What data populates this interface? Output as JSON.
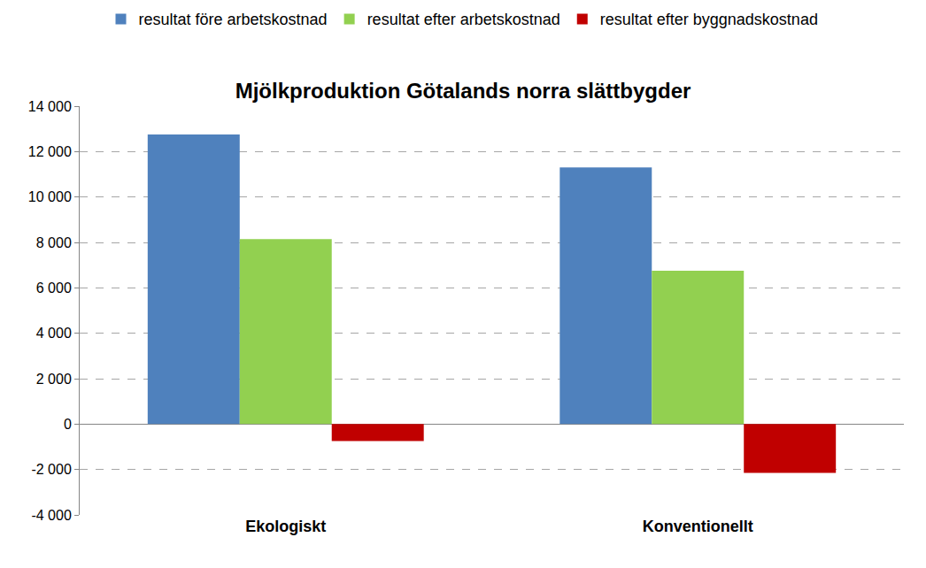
{
  "chart_data": {
    "type": "bar",
    "title": "Mjölkproduktion Götalands norra slättbygder",
    "categories": [
      "Ekologiskt",
      "Konventionellt"
    ],
    "series": [
      {
        "name": "resultat före arbetskostnad",
        "color": "#4f81bd",
        "values": [
          12750,
          11300
        ]
      },
      {
        "name": "resultat efter arbetskostnad",
        "color": "#92d050",
        "values": [
          8150,
          6750
        ]
      },
      {
        "name": "resultat efter byggnadskostnad",
        "color": "#c00000",
        "values": [
          -750,
          -2150
        ]
      }
    ],
    "ylim": [
      -4000,
      14000
    ],
    "yticks": [
      {
        "value": -4000,
        "label": "-4 000"
      },
      {
        "value": -2000,
        "label": "-2 000"
      },
      0,
      {
        "value": 2000,
        "label": "2 000"
      },
      {
        "value": 4000,
        "label": "4 000"
      },
      {
        "value": 6000,
        "label": "6 000"
      },
      {
        "value": 8000,
        "label": "8 000"
      },
      {
        "value": 10000,
        "label": "10 000"
      },
      {
        "value": 12000,
        "label": "12 000"
      },
      {
        "value": 14000,
        "label": "14 000"
      }
    ],
    "grid": true,
    "legend": "top"
  }
}
